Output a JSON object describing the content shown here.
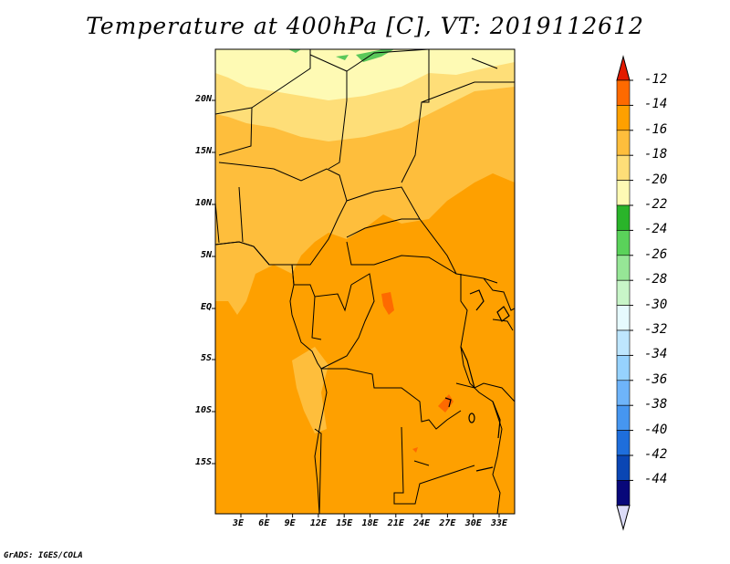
{
  "title": "Temperature at 400hPa [C], VT: 2019112612",
  "credit": "GrADS: IGES/COLA",
  "map": {
    "lat_ticks": [
      "20N",
      "15N",
      "10N",
      "5N",
      "EQ",
      "5S",
      "10S",
      "15S"
    ],
    "lon_ticks": [
      "3E",
      "6E",
      "9E",
      "12E",
      "15E",
      "18E",
      "21E",
      "24E",
      "27E",
      "30E",
      "33E"
    ],
    "fill_colors": {
      "c14_12": "#fe6a00",
      "c16_14": "#fea000",
      "c18_16": "#febe3c",
      "c20_18": "#fede78",
      "c22_20": "#fefab4",
      "green_light": "#5ac85a",
      "green_dark": "#2ab42a"
    }
  },
  "colorbar": {
    "labels": [
      "-12",
      "-14",
      "-16",
      "-18",
      "-20",
      "-22",
      "-24",
      "-26",
      "-28",
      "-30",
      "-32",
      "-34",
      "-36",
      "-38",
      "-40",
      "-42",
      "-44"
    ],
    "colors": [
      "#e31a00",
      "#fe6a00",
      "#fea000",
      "#febe3c",
      "#fede78",
      "#fefab4",
      "#2ab42a",
      "#5ad25a",
      "#96e696",
      "#c8f5c8",
      "#e6fafe",
      "#bee6fe",
      "#96d2fe",
      "#6eb4fa",
      "#4696f0",
      "#1e6edc",
      "#0a46b4",
      "#08087a",
      "#dcdcf8"
    ]
  }
}
